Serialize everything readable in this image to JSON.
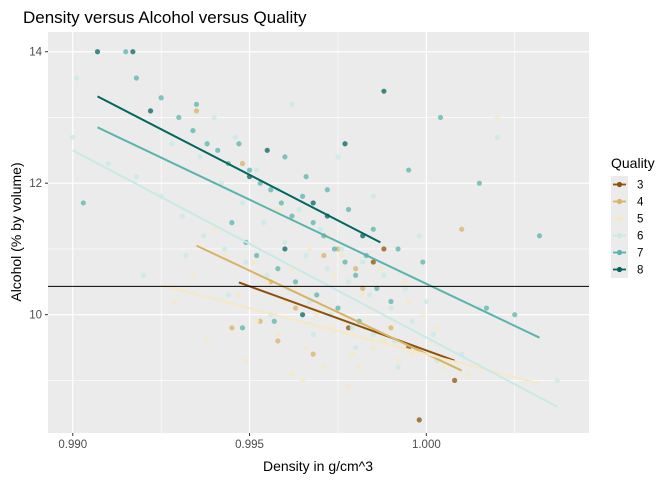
{
  "chart_data": {
    "type": "scatter",
    "title": "Density versus Alcohol versus Quality",
    "xlabel": "Density in g/cm^3",
    "ylabel": "Alcohol  (% by volume)",
    "xlim": [
      0.9893,
      1.0046
    ],
    "ylim": [
      8.2,
      14.3
    ],
    "x_ticks": [
      0.99,
      0.995,
      1.0
    ],
    "x_tick_labels": [
      "0.990",
      "0.995",
      "1.000"
    ],
    "y_ticks": [
      10,
      12,
      14
    ],
    "y_tick_labels": [
      "10",
      "12",
      "14"
    ],
    "grid": true,
    "legend_position": "right",
    "legend_title": "Quality",
    "hline": 10.43,
    "series": [
      {
        "name": "3",
        "color": "#8c510a",
        "points": [
          [
            0.9998,
            8.4
          ],
          [
            1.0008,
            9.0
          ],
          [
            0.9988,
            11.0
          ],
          [
            0.9985,
            10.8
          ],
          [
            0.9978,
            9.8
          ],
          [
            0.9995,
            9.5
          ]
        ],
        "trend": [
          [
            0.9947,
            10.49
          ],
          [
            1.0008,
            9.3
          ]
        ]
      },
      {
        "name": "4",
        "color": "#d8b365",
        "points": [
          [
            0.9935,
            13.1
          ],
          [
            0.9953,
            9.9
          ],
          [
            0.9968,
            9.4
          ],
          [
            0.9958,
            9.6
          ],
          [
            0.9982,
            10.4
          ],
          [
            1.001,
            11.3
          ],
          [
            0.998,
            10.7
          ],
          [
            0.9945,
            9.8
          ],
          [
            0.9975,
            11.0
          ],
          [
            0.9963,
            10.1
          ],
          [
            0.9948,
            12.3
          ],
          [
            0.999,
            9.8
          ],
          [
            0.9971,
            10.9
          ],
          [
            0.9956,
            10.5
          ]
        ],
        "trend": [
          [
            0.9935,
            11.05
          ],
          [
            1.001,
            9.15
          ]
        ]
      },
      {
        "name": "5",
        "color": "#f6e8c3",
        "points": [
          [
            0.9962,
            9.1
          ],
          [
            0.9971,
            9.2
          ],
          [
            0.9979,
            9.4
          ],
          [
            0.9985,
            9.5
          ],
          [
            0.9992,
            9.3
          ],
          [
            1.0001,
            9.6
          ],
          [
            0.9958,
            9.7
          ],
          [
            0.9966,
            9.5
          ],
          [
            0.9973,
            9.8
          ],
          [
            0.9981,
            9.2
          ],
          [
            0.9988,
            9.6
          ],
          [
            0.9996,
            9.4
          ],
          [
            1.0005,
            9.2
          ],
          [
            0.9952,
            9.9
          ],
          [
            0.996,
            10.2
          ],
          [
            0.9969,
            10.0
          ],
          [
            0.9977,
            9.9
          ],
          [
            0.9984,
            10.1
          ],
          [
            0.9991,
            9.9
          ],
          [
            0.9999,
            10.0
          ],
          [
            0.9947,
            10.3
          ],
          [
            0.9955,
            10.5
          ],
          [
            0.9963,
            10.4
          ],
          [
            0.9974,
            10.6
          ],
          [
            0.9982,
            10.3
          ],
          [
            0.9994,
            10.5
          ],
          [
            0.9943,
            10.9
          ],
          [
            0.9951,
            10.8
          ],
          [
            0.9967,
            11.0
          ],
          [
            0.9976,
            10.9
          ],
          [
            0.9987,
            10.7
          ],
          [
            0.994,
            11.3
          ],
          [
            0.9958,
            11.6
          ],
          [
            0.9972,
            11.2
          ],
          [
            1.002,
            13.0
          ],
          [
            0.9938,
            9.6
          ],
          [
            0.9949,
            9.3
          ],
          [
            1.0012,
            9.1
          ],
          [
            0.9929,
            10.2
          ],
          [
            0.9934,
            10.6
          ],
          [
            0.9965,
            9.0
          ],
          [
            0.9978,
            8.9
          ],
          [
            1.0003,
            9.8
          ],
          [
            0.9995,
            10.2
          ],
          [
            0.9962,
            10.7
          ]
        ],
        "trend": [
          [
            0.9925,
            10.45
          ],
          [
            1.0032,
            8.95
          ]
        ]
      },
      {
        "name": "6",
        "color": "#c7eae5",
        "points": [
          [
            0.99,
            12.7
          ],
          [
            0.9901,
            13.6
          ],
          [
            0.991,
            12.3
          ],
          [
            0.9918,
            12.1
          ],
          [
            0.9925,
            11.8
          ],
          [
            0.9931,
            11.5
          ],
          [
            0.9937,
            11.2
          ],
          [
            0.9943,
            11.0
          ],
          [
            0.9949,
            10.8
          ],
          [
            0.9955,
            10.6
          ],
          [
            0.9961,
            10.4
          ],
          [
            0.9967,
            10.2
          ],
          [
            0.9973,
            10.0
          ],
          [
            0.9979,
            9.8
          ],
          [
            0.9985,
            9.7
          ],
          [
            0.9991,
            9.6
          ],
          [
            0.9997,
            9.5
          ],
          [
            1.0003,
            9.3
          ],
          [
            1.001,
            9.4
          ],
          [
            0.9928,
            12.6
          ],
          [
            0.9936,
            12.4
          ],
          [
            0.9942,
            12.0
          ],
          [
            0.9948,
            11.7
          ],
          [
            0.9954,
            11.4
          ],
          [
            0.996,
            11.1
          ],
          [
            0.9966,
            10.9
          ],
          [
            0.9972,
            10.7
          ],
          [
            0.9978,
            10.5
          ],
          [
            0.9984,
            10.3
          ],
          [
            0.999,
            10.1
          ],
          [
            0.9996,
            9.9
          ],
          [
            1.0002,
            9.7
          ],
          [
            0.994,
            13.0
          ],
          [
            0.9946,
            12.7
          ],
          [
            0.9952,
            12.2
          ],
          [
            0.9958,
            11.9
          ],
          [
            0.9964,
            11.6
          ],
          [
            0.997,
            11.3
          ],
          [
            0.9976,
            11.0
          ],
          [
            0.9982,
            10.8
          ],
          [
            0.9988,
            10.6
          ],
          [
            0.9994,
            10.4
          ],
          [
            1.0,
            10.2
          ],
          [
            0.992,
            10.6
          ],
          [
            0.9932,
            10.9
          ],
          [
            0.9944,
            10.3
          ],
          [
            0.9956,
            10.0
          ],
          [
            0.9968,
            9.7
          ],
          [
            0.998,
            9.5
          ],
          [
            0.9992,
            9.2
          ],
          [
            1.002,
            12.7
          ],
          [
            1.0037,
            9.0
          ],
          [
            1.0015,
            10.1
          ],
          [
            0.9962,
            13.2
          ],
          [
            0.9975,
            12.4
          ],
          [
            0.9985,
            11.8
          ],
          [
            0.9998,
            11.2
          ]
        ],
        "trend": [
          [
            0.99,
            12.5
          ],
          [
            1.0037,
            8.6
          ]
        ]
      },
      {
        "name": "7",
        "color": "#5ab4ac",
        "points": [
          [
            0.9903,
            11.7
          ],
          [
            0.9915,
            14.0
          ],
          [
            0.9918,
            13.6
          ],
          [
            0.9925,
            13.3
          ],
          [
            0.993,
            13.0
          ],
          [
            0.9934,
            12.8
          ],
          [
            0.9938,
            12.6
          ],
          [
            0.9941,
            12.5
          ],
          [
            0.9944,
            12.3
          ],
          [
            0.9947,
            12.6
          ],
          [
            0.995,
            12.2
          ],
          [
            0.9953,
            12.0
          ],
          [
            0.9956,
            11.9
          ],
          [
            0.9959,
            11.7
          ],
          [
            0.9962,
            11.5
          ],
          [
            0.9965,
            11.8
          ],
          [
            0.9968,
            11.4
          ],
          [
            0.9971,
            11.2
          ],
          [
            0.9974,
            11.0
          ],
          [
            0.9977,
            10.8
          ],
          [
            0.998,
            10.6
          ],
          [
            0.9983,
            10.9
          ],
          [
            0.9986,
            10.4
          ],
          [
            0.999,
            10.2
          ],
          [
            0.9945,
            11.4
          ],
          [
            0.9949,
            11.1
          ],
          [
            0.9952,
            10.9
          ],
          [
            0.9958,
            10.7
          ],
          [
            0.9963,
            10.5
          ],
          [
            0.9969,
            10.3
          ],
          [
            0.9975,
            10.1
          ],
          [
            0.9981,
            9.9
          ],
          [
            0.996,
            12.4
          ],
          [
            0.9966,
            12.1
          ],
          [
            0.9972,
            11.9
          ],
          [
            0.9978,
            11.6
          ],
          [
            0.9985,
            11.3
          ],
          [
            0.9992,
            11.0
          ],
          [
            0.9999,
            10.8
          ],
          [
            1.0004,
            13.0
          ],
          [
            1.0015,
            12.0
          ],
          [
            1.0017,
            10.1
          ],
          [
            1.0032,
            11.2
          ],
          [
            1.0025,
            10.0
          ],
          [
            0.9995,
            12.2
          ],
          [
            0.9948,
            9.8
          ],
          [
            0.9957,
            9.9
          ],
          [
            0.9935,
            13.2
          ]
        ],
        "trend": [
          [
            0.9907,
            12.85
          ],
          [
            1.0032,
            9.65
          ]
        ]
      },
      {
        "name": "8",
        "color": "#01665e",
        "points": [
          [
            0.9907,
            14.0
          ],
          [
            0.9917,
            14.0
          ],
          [
            0.9922,
            13.1
          ],
          [
            0.9988,
            13.4
          ],
          [
            0.9977,
            12.6
          ],
          [
            0.9968,
            11.7
          ],
          [
            0.995,
            12.1
          ],
          [
            0.996,
            11.0
          ],
          [
            0.9982,
            11.2
          ],
          [
            0.9972,
            11.5
          ],
          [
            0.9955,
            12.5
          ],
          [
            0.9965,
            10.0
          ]
        ],
        "trend": [
          [
            0.9907,
            13.32
          ],
          [
            0.9987,
            11.1
          ]
        ]
      }
    ]
  }
}
